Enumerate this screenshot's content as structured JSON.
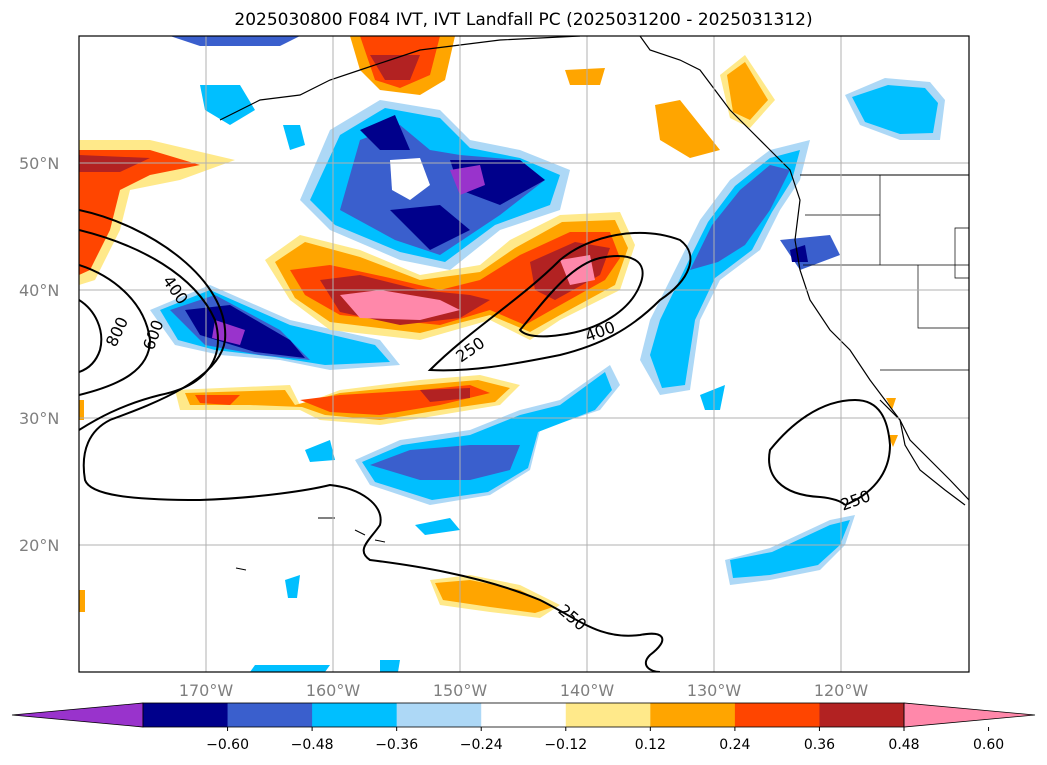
{
  "title": "2025030800 F084 IVT, IVT Landfall PC (2025031200 - 2025031312)",
  "lat_labels": [
    "50°N",
    "40°N",
    "30°N",
    "20°N"
  ],
  "lon_labels": [
    "170°W",
    "160°W",
    "150°W",
    "140°W",
    "130°W",
    "120°W"
  ],
  "contour_labels": [
    "800",
    "600",
    "400",
    "250",
    "400",
    "250",
    "250"
  ],
  "colorbar": {
    "ticks": [
      "−0.60",
      "−0.48",
      "−0.36",
      "−0.24",
      "−0.12",
      "0.12",
      "0.24",
      "0.36",
      "0.48",
      "0.60"
    ],
    "colors": [
      "#9933cc",
      "#00008b",
      "#3a5fcd",
      "#00bfff",
      "#add8f6",
      "#ffffff",
      "#ffe98a",
      "#ffa500",
      "#ff4500",
      "#b22222",
      "#ff88aa"
    ],
    "extend": "both"
  },
  "legend": {
    "fill": "IVT Landfall PC",
    "contours": "IVT"
  }
}
